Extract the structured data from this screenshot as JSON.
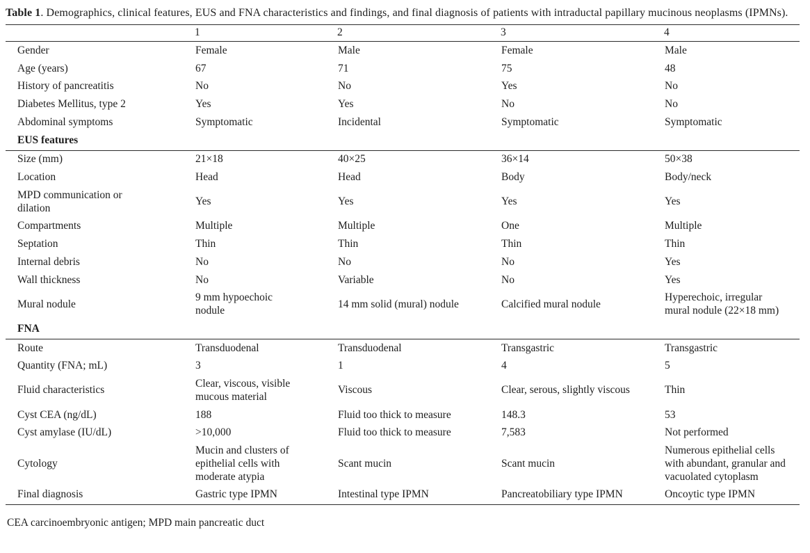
{
  "page": {
    "title_label": "Table 1",
    "title_rest": ". Demographics, clinical features, EUS and FNA characteristics and findings, and final diagnosis of patients with intraductal papillary mucinous neoplasms (IPMNs).",
    "footnote": "CEA carcinoembryonic antigen; MPD main pancreatic duct"
  },
  "table": {
    "column_headers": [
      "1",
      "2",
      "3",
      "4"
    ],
    "sections": [
      {
        "header": "",
        "rows": [
          {
            "label": "Gender",
            "values": [
              "Female",
              "Male",
              "Female",
              "Male"
            ]
          },
          {
            "label": "Age (years)",
            "values": [
              "67",
              "71",
              "75",
              "48"
            ]
          },
          {
            "label": "History of pancreatitis",
            "values": [
              "No",
              "No",
              "Yes",
              "No"
            ]
          },
          {
            "label": "Diabetes Mellitus, type 2",
            "values": [
              "Yes",
              "Yes",
              "No",
              "No"
            ]
          },
          {
            "label": "Abdominal symptoms",
            "values": [
              "Symptomatic",
              "Incidental",
              "Symptomatic",
              "Symptomatic"
            ]
          }
        ]
      },
      {
        "header": "EUS features",
        "rows": [
          {
            "label": "Size (mm)",
            "values": [
              "21×18",
              "40×25",
              "36×14",
              "50×38"
            ]
          },
          {
            "label": "Location",
            "values": [
              "Head",
              "Head",
              "Body",
              "Body/neck"
            ]
          },
          {
            "label": "MPD communication or dilation",
            "values": [
              "Yes",
              "Yes",
              "Yes",
              "Yes"
            ]
          },
          {
            "label": "Compartments",
            "values": [
              "Multiple",
              "Multiple",
              "One",
              "Multiple"
            ]
          },
          {
            "label": "Septation",
            "values": [
              "Thin",
              "Thin",
              "Thin",
              "Thin"
            ]
          },
          {
            "label": "Internal debris",
            "values": [
              "No",
              "No",
              "No",
              "Yes"
            ]
          },
          {
            "label": "Wall thickness",
            "values": [
              "No",
              "Variable",
              "No",
              "Yes"
            ]
          },
          {
            "label": "Mural nodule",
            "values": [
              "9 mm hypoechoic nodule",
              "14 mm solid (mural) nodule",
              "Calcified mural nodule",
              "Hyperechoic, irregular mural nodule (22×18 mm)"
            ]
          }
        ]
      },
      {
        "header": "FNA",
        "rows": [
          {
            "label": "Route",
            "values": [
              "Transduodenal",
              "Transduodenal",
              "Transgastric",
              "Transgastric"
            ]
          },
          {
            "label": "Quantity (FNA; mL)",
            "values": [
              "3",
              "1",
              "4",
              "5"
            ]
          },
          {
            "label": "Fluid characteristics",
            "values": [
              "Clear, viscous, visible mucous material",
              "Viscous",
              "Clear, serous, slightly viscous",
              "Thin"
            ]
          },
          {
            "label": "Cyst CEA (ng/dL)",
            "values": [
              "188",
              "Fluid too thick to measure",
              "148.3",
              "53"
            ]
          },
          {
            "label": "Cyst amylase (IU/dL)",
            "values": [
              ">10,000",
              "Fluid too thick to measure",
              "7,583",
              "Not performed"
            ]
          },
          {
            "label": "Cytology",
            "values": [
              "Mucin and clusters of epithelial cells with moderate atypia",
              "Scant mucin",
              "Scant mucin",
              "Numerous epithelial cells with abundant, granular and vacuolated cytoplasm"
            ]
          },
          {
            "label": "Final diagnosis",
            "values": [
              "Gastric type IPMN",
              "Intestinal type IPMN",
              "Pancreatobiliary type IPMN",
              "Oncoytic type IPMN"
            ]
          }
        ]
      }
    ]
  }
}
